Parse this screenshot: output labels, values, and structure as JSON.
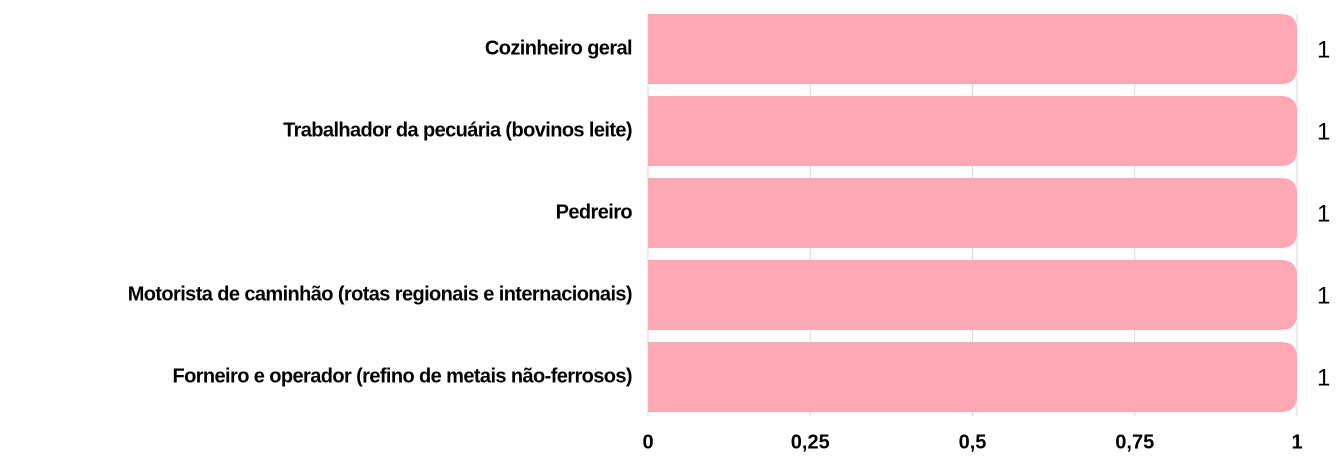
{
  "chart_data": {
    "type": "bar",
    "orientation": "horizontal",
    "categories": [
      "Cozinheiro geral",
      "Trabalhador da pecuária (bovinos leite)",
      "Pedreiro",
      "Motorista de caminhão (rotas regionais e internacionais)",
      "Forneiro e operador (refino de metais não-ferrosos)"
    ],
    "values": [
      1,
      1,
      1,
      1,
      1
    ],
    "color": "#ffa8b5",
    "xlim": [
      0,
      1
    ],
    "xticks": [
      0,
      {
        "value": 0.25,
        "label": "0,25"
      },
      {
        "value": 0.5,
        "label": "0,5"
      },
      {
        "value": 0.75,
        "label": "0,75"
      },
      1
    ],
    "grid": true
  }
}
